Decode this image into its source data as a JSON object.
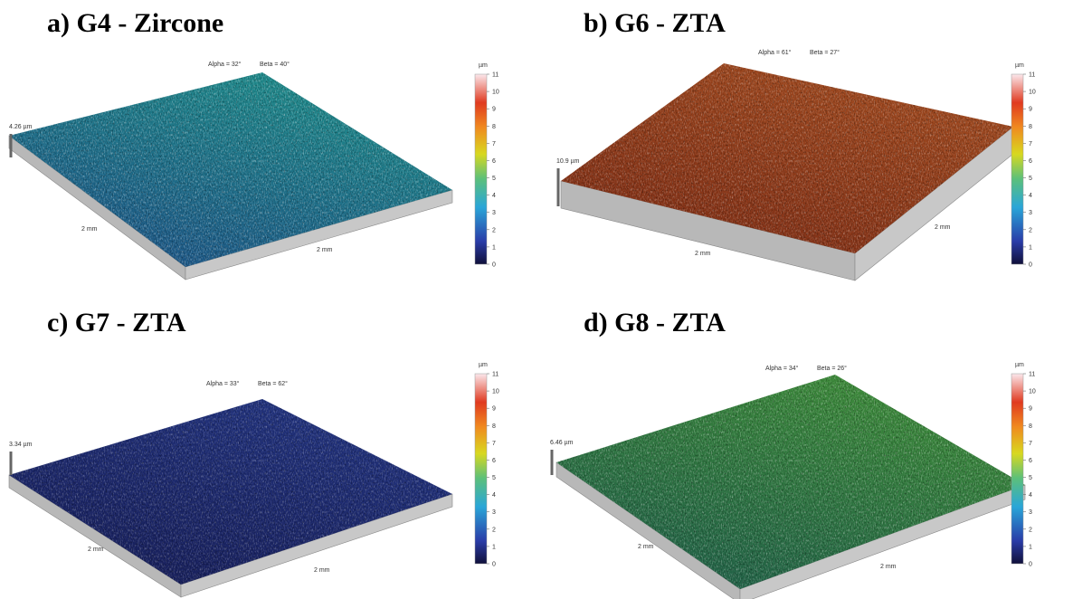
{
  "panels": [
    {
      "title": "a) G4 - Zircone",
      "alpha": "Alpha = 32°",
      "beta": "Beta = 40°",
      "height": "4.26 µm",
      "x_label": "2 mm",
      "y_label": "2 mm",
      "colorbar": {
        "unit": "µm",
        "ticks": [
          0,
          1,
          2,
          3,
          4,
          5,
          6,
          7,
          8,
          9,
          10,
          11
        ]
      }
    },
    {
      "title": "b) G6 - ZTA",
      "alpha": "Alpha = 61°",
      "beta": "Beta = 27°",
      "height": "10.9 µm",
      "x_label": "2 mm",
      "y_label": "2 mm",
      "colorbar": {
        "unit": "µm",
        "ticks": [
          0,
          1,
          2,
          3,
          4,
          5,
          6,
          7,
          8,
          9,
          10,
          11
        ]
      }
    },
    {
      "title": "c) G7 - ZTA",
      "alpha": "Alpha = 33°",
      "beta": "Beta = 62°",
      "height": "3.34 µm",
      "x_label": "2 mm",
      "y_label": "2 mm",
      "colorbar": {
        "unit": "µm",
        "ticks": [
          0,
          1,
          2,
          3,
          4,
          5,
          6,
          7,
          8,
          9,
          10,
          11
        ]
      }
    },
    {
      "title": "d) G8 - ZTA",
      "alpha": "Alpha = 34°",
      "beta": "Beta = 26°",
      "height": "6.46 µm",
      "x_label": "2 mm",
      "y_label": "2 mm",
      "colorbar": {
        "unit": "µm",
        "ticks": [
          0,
          1,
          2,
          3,
          4,
          5,
          6,
          7,
          8,
          9,
          10,
          11
        ]
      }
    }
  ]
}
